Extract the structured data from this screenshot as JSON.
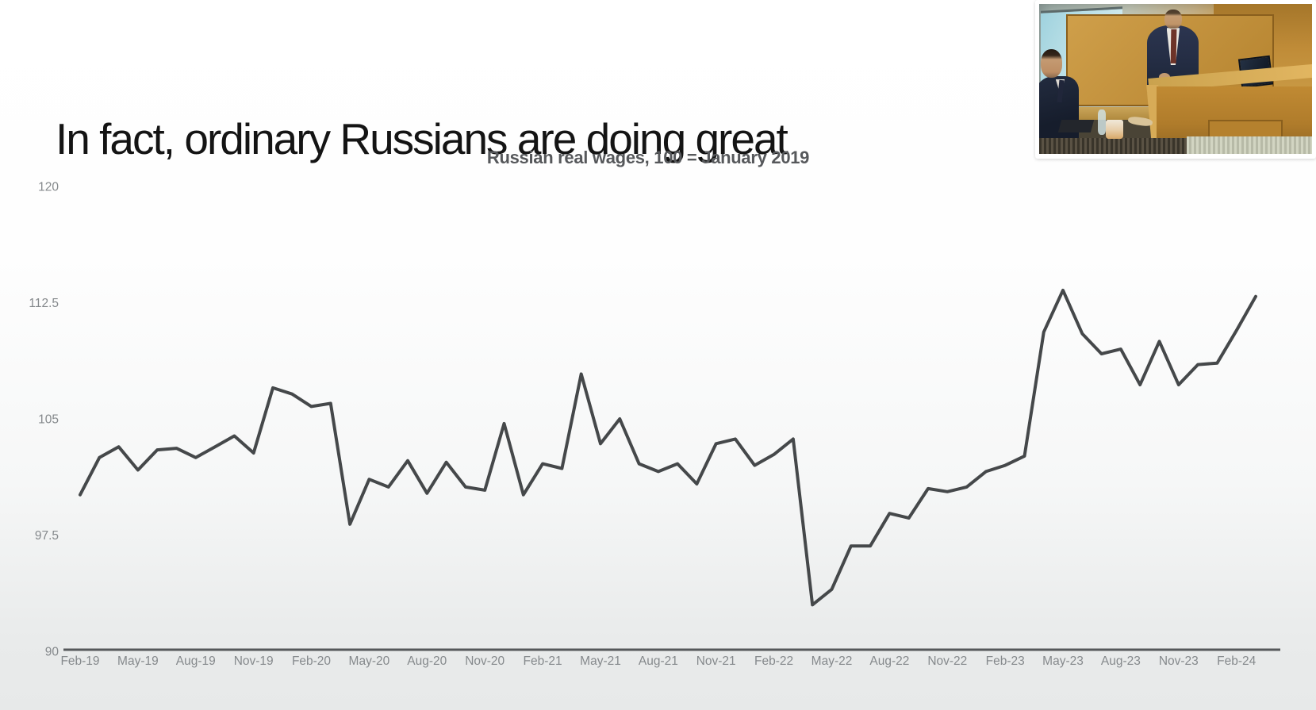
{
  "slide": {
    "title": "In fact, ordinary Russians are doing great"
  },
  "chart_data": {
    "type": "line",
    "title": "Russian real wages, 100 = January 2019",
    "xlabel": "",
    "ylabel": "",
    "ylim": [
      90,
      120
    ],
    "y_ticks": [
      120,
      112.5,
      105,
      97.5,
      90
    ],
    "grid": false,
    "legend": "none",
    "line_color": "#45484a",
    "axis_color": "#55585a",
    "tick_label_color": "#85898c",
    "x": [
      "Feb-19",
      "Mar-19",
      "Apr-19",
      "May-19",
      "Jun-19",
      "Jul-19",
      "Aug-19",
      "Sep-19",
      "Oct-19",
      "Nov-19",
      "Dec-19",
      "Jan-20",
      "Feb-20",
      "Mar-20",
      "Apr-20",
      "May-20",
      "Jun-20",
      "Jul-20",
      "Aug-20",
      "Sep-20",
      "Oct-20",
      "Nov-20",
      "Dec-20",
      "Jan-21",
      "Feb-21",
      "Mar-21",
      "Apr-21",
      "May-21",
      "Jun-21",
      "Jul-21",
      "Aug-21",
      "Sep-21",
      "Oct-21",
      "Nov-21",
      "Dec-21",
      "Jan-22",
      "Feb-22",
      "Mar-22",
      "Apr-22",
      "May-22",
      "Jun-22",
      "Jul-22",
      "Aug-22",
      "Sep-22",
      "Oct-22",
      "Nov-22",
      "Dec-22",
      "Jan-23",
      "Feb-23",
      "Mar-23",
      "Apr-23",
      "May-23",
      "Jun-23",
      "Jul-23",
      "Aug-23",
      "Sep-23",
      "Oct-23",
      "Nov-23",
      "Dec-23",
      "Jan-24",
      "Feb-24",
      "Mar-24"
    ],
    "x_tick_labels": [
      "Feb-19",
      "May-19",
      "Aug-19",
      "Nov-19",
      "Feb-20",
      "May-20",
      "Aug-20",
      "Nov-20",
      "Feb-21",
      "May-21",
      "Aug-21",
      "Nov-21",
      "Feb-22",
      "May-22",
      "Aug-22",
      "Nov-22",
      "Feb-23",
      "May-23",
      "Aug-23",
      "Nov-23",
      "Feb-24"
    ],
    "series": [
      {
        "name": "Russian real wages (index, January 2019 = 100)",
        "values": [
          100.1,
          102.5,
          103.2,
          101.7,
          103.0,
          103.1,
          102.5,
          103.2,
          103.9,
          102.8,
          107.0,
          106.6,
          105.8,
          106.0,
          98.2,
          101.1,
          100.6,
          102.3,
          100.2,
          102.2,
          100.6,
          100.4,
          104.7,
          100.1,
          102.1,
          101.8,
          107.9,
          103.4,
          105.0,
          102.1,
          101.6,
          102.1,
          100.8,
          103.4,
          103.7,
          102.0,
          102.7,
          103.7,
          93.0,
          94.0,
          96.8,
          96.8,
          98.9,
          98.6,
          100.5,
          100.3,
          100.6,
          101.6,
          102.0,
          102.6,
          110.6,
          113.3,
          110.5,
          109.2,
          109.5,
          107.2,
          110.0,
          107.2,
          108.5,
          108.6,
          110.7,
          112.9
        ]
      }
    ]
  }
}
